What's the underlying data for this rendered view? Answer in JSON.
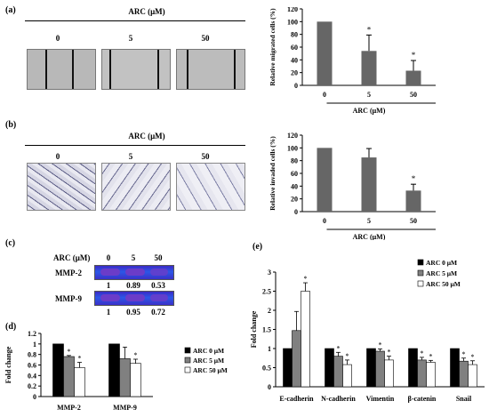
{
  "panels": {
    "a": {
      "label": "(a)",
      "header": "ARC (μM)",
      "conc_labels": [
        "0",
        "5",
        "50"
      ]
    },
    "b": {
      "label": "(b)",
      "header": "ARC (μM)",
      "conc_labels": [
        "0",
        "5",
        "50"
      ]
    },
    "c": {
      "label": "(c)",
      "header": "ARC (μM)",
      "conc_labels": [
        "0",
        "5",
        "50"
      ],
      "rows": [
        {
          "name": "MMP-2",
          "values": [
            "1",
            "0.89",
            "0.53"
          ]
        },
        {
          "name": "MMP-9",
          "values": [
            "1",
            "0.95",
            "0.72"
          ]
        }
      ]
    },
    "d": {
      "label": "(d)"
    },
    "e": {
      "label": "(e)"
    }
  },
  "chart_data": [
    {
      "id": "migration",
      "type": "bar",
      "categories": [
        "0",
        "5",
        "50"
      ],
      "values": [
        100,
        54,
        23
      ],
      "errors": [
        0,
        25,
        16
      ],
      "significant": [
        false,
        true,
        true
      ],
      "ylabel": "Relative migrated cells (%)",
      "xlabel": "ARC (μM)",
      "ylim": [
        0,
        120
      ],
      "yticks": [
        0,
        20,
        40,
        60,
        80,
        100,
        120
      ],
      "bar_color": "#666666"
    },
    {
      "id": "invasion",
      "type": "bar",
      "categories": [
        "0",
        "5",
        "50"
      ],
      "values": [
        100,
        85,
        33
      ],
      "errors": [
        0,
        14,
        10
      ],
      "significant": [
        false,
        false,
        true
      ],
      "ylabel": "Relative invaded cells (%)",
      "xlabel": "ARC (μM)",
      "ylim": [
        0,
        120
      ],
      "yticks": [
        0,
        20,
        40,
        60,
        80,
        100,
        120
      ],
      "bar_color": "#666666"
    },
    {
      "id": "mmp",
      "type": "bar",
      "categories": [
        "MMP-2",
        "MMP-9"
      ],
      "series": [
        {
          "name": "ARC 0 μM",
          "values": [
            1.0,
            1.0
          ],
          "errors": [
            0,
            0
          ],
          "significant": [
            false,
            false
          ],
          "color": "#000000"
        },
        {
          "name": "ARC 5 μM",
          "values": [
            0.76,
            0.72
          ],
          "errors": [
            0.02,
            0.22
          ],
          "significant": [
            true,
            false
          ],
          "color": "#808080"
        },
        {
          "name": "ARC 50 μM",
          "values": [
            0.55,
            0.63
          ],
          "errors": [
            0.1,
            0.08
          ],
          "significant": [
            true,
            true
          ],
          "color": "#ffffff"
        }
      ],
      "ylabel": "Fold change",
      "ylim": [
        0,
        1.2
      ],
      "yticks": [
        0,
        0.2,
        0.4,
        0.6,
        0.8,
        1,
        1.2
      ],
      "legend": "right"
    },
    {
      "id": "emt",
      "type": "bar",
      "categories": [
        "E-cadherin",
        "N-cadherin",
        "Vimentin",
        "β-catenin",
        "Snail"
      ],
      "series": [
        {
          "name": "ARC 0 μM",
          "values": [
            1.0,
            1.0,
            1.0,
            1.0,
            1.0
          ],
          "errors": [
            0,
            0,
            0,
            0,
            0
          ],
          "significant": [
            false,
            false,
            false,
            false,
            false
          ],
          "color": "#000000"
        },
        {
          "name": "ARC 5 μM",
          "values": [
            1.47,
            0.8,
            0.93,
            0.7,
            0.67
          ],
          "errors": [
            0.5,
            0.1,
            0.06,
            0.07,
            0.08
          ],
          "significant": [
            false,
            true,
            true,
            true,
            true
          ],
          "color": "#808080"
        },
        {
          "name": "ARC 50 μM",
          "values": [
            2.5,
            0.58,
            0.7,
            0.64,
            0.58
          ],
          "errors": [
            0.22,
            0.12,
            0.1,
            0.05,
            0.1
          ],
          "significant": [
            true,
            true,
            true,
            true,
            true
          ],
          "color": "#ffffff"
        }
      ],
      "ylabel": "Fold change",
      "ylim": [
        0,
        3
      ],
      "yticks": [
        0,
        0.5,
        1,
        1.5,
        2,
        2.5,
        3
      ],
      "legend": "top-right"
    }
  ]
}
